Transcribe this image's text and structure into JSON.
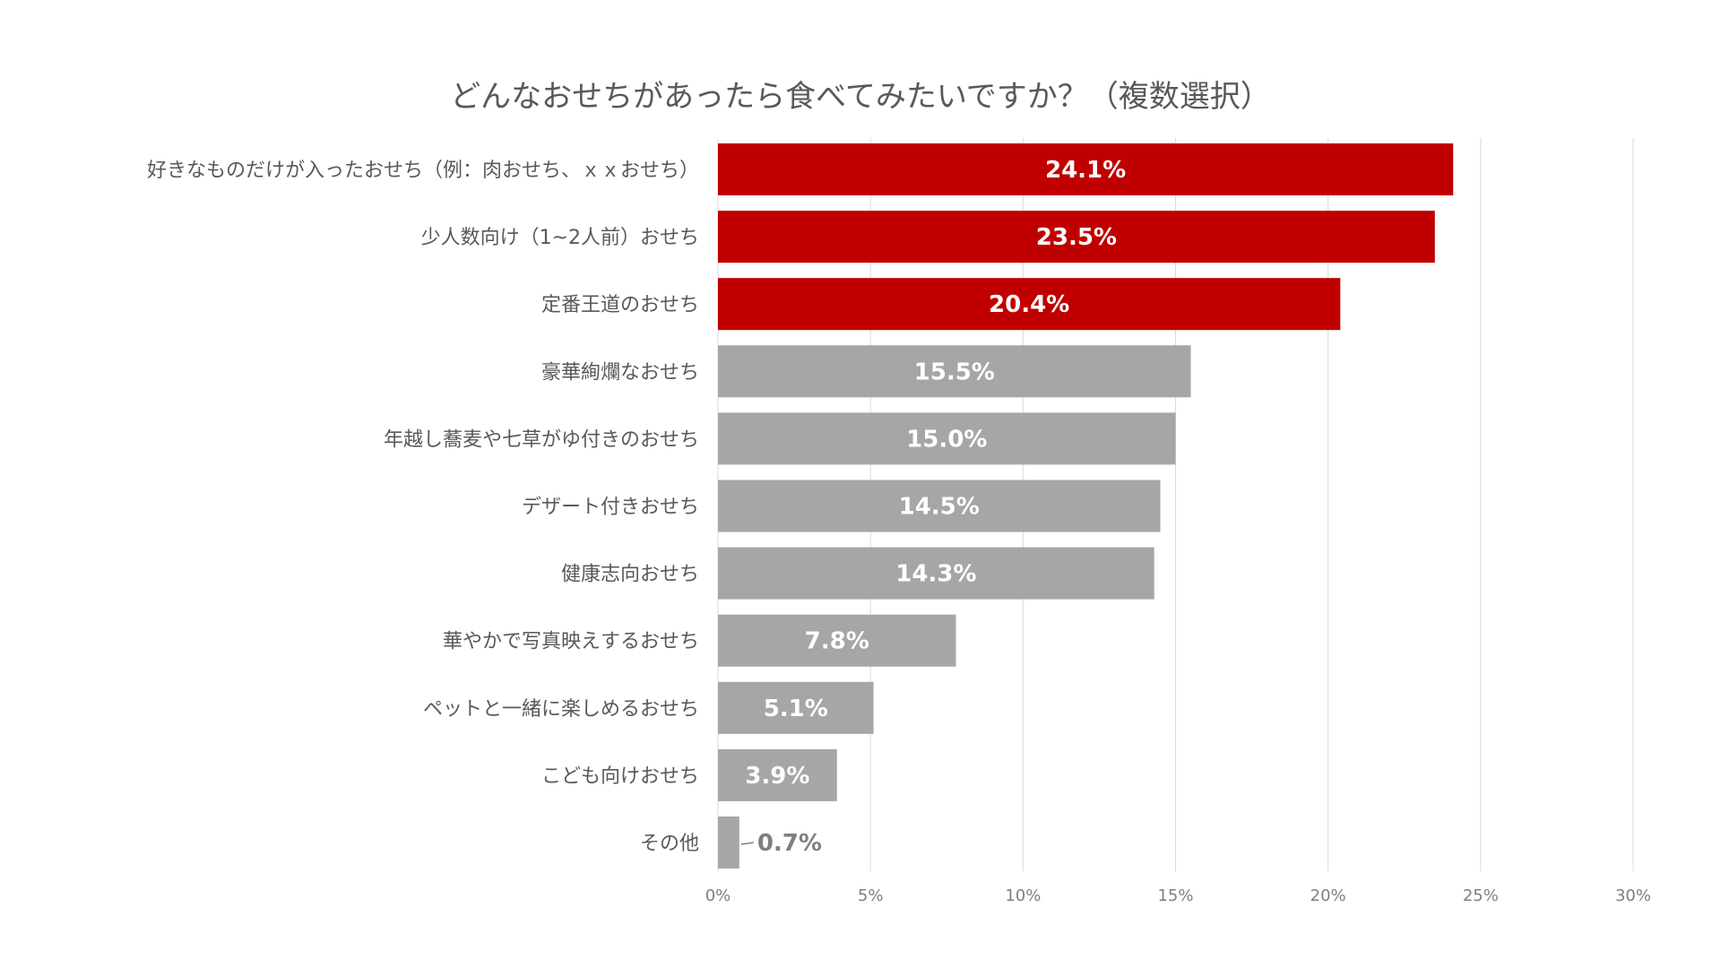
{
  "chart_data": {
    "type": "bar",
    "orientation": "horizontal",
    "title": "どんなおせちがあったら食べてみたいですか？（複数選択）",
    "categories": [
      "好きなものだけが入ったおせち（例：肉おせち、ｘｘおせち）",
      "少人数向け（1~2人前）おせち",
      "定番王道のおせち",
      "豪華絢爛なおせち",
      "年越し蕎麦や七草がゆ付きのおせち",
      "デザート付きおせち",
      "健康志向おせち",
      "華やかで写真映えするおせち",
      "ペットと一緒に楽しめるおせち",
      "こども向けおせち",
      "その他"
    ],
    "values": [
      24.1,
      23.5,
      20.4,
      15.5,
      15.0,
      14.5,
      14.3,
      7.8,
      5.1,
      3.9,
      0.7
    ],
    "value_labels": [
      "24.1%",
      "23.5%",
      "20.4%",
      "15.5%",
      "15.0%",
      "14.5%",
      "14.3%",
      "7.8%",
      "5.1%",
      "3.9%",
      "0.7%"
    ],
    "highlight_count": 3,
    "colors": {
      "highlight": "#c00000",
      "default": "#a6a6a6",
      "grid": "#d9d9d9"
    },
    "xlim": [
      0,
      30
    ],
    "xticks": [
      0,
      5,
      10,
      15,
      20,
      25,
      30
    ],
    "xtick_labels": [
      "0%",
      "5%",
      "10%",
      "15%",
      "20%",
      "25%",
      "30%"
    ],
    "grid": true,
    "xlabel": "",
    "ylabel": ""
  }
}
